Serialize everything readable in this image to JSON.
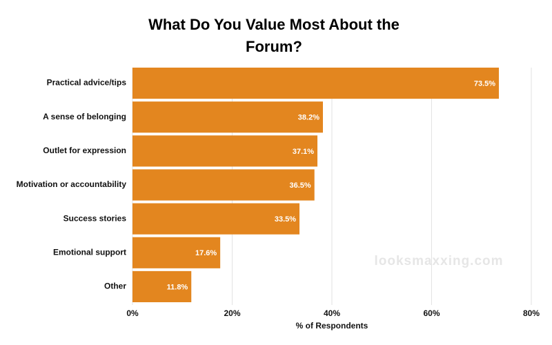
{
  "chart_data": {
    "type": "hbar",
    "title": "What Do You Value Most About the Forum?",
    "x_label": "% of Respondents",
    "watermark": "looksmaxxing.com",
    "categories": [
      "Practical advice/tips",
      "A sense of belonging",
      "Outlet for expression",
      "Motivation or accountability",
      "Success stories",
      "Emotional support",
      "Other"
    ],
    "values": [
      73.5,
      38.2,
      37.1,
      36.5,
      33.5,
      17.6,
      11.8
    ],
    "value_labels": [
      "73.5%",
      "38.2%",
      "37.1%",
      "36.5%",
      "33.5%",
      "17.6%",
      "11.8%"
    ],
    "color": "#e3861f",
    "xlim": [
      0,
      80
    ],
    "xticks": [
      {
        "value": 0,
        "label": "0%"
      },
      {
        "value": 20,
        "label": "20%"
      },
      {
        "value": 40,
        "label": "40%"
      },
      {
        "value": 60,
        "label": "60%"
      },
      {
        "value": 80,
        "label": "80%"
      }
    ],
    "grid": true
  }
}
